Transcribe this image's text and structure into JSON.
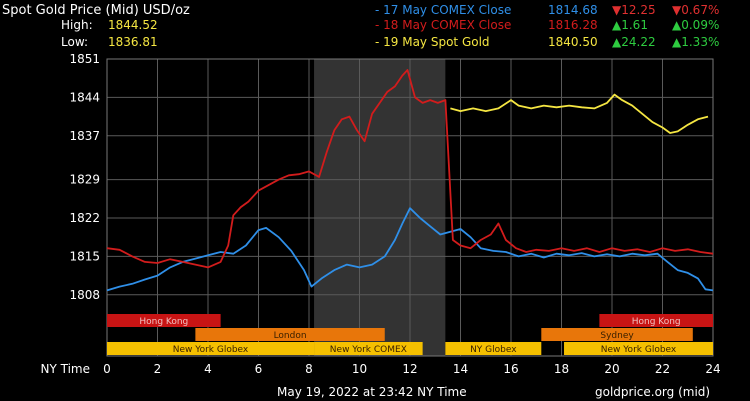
{
  "header": {
    "title": "Spot Gold Price (Mid) USD/oz",
    "high_label": "High:",
    "high_value": "1844.52",
    "low_label": "Low:",
    "low_value": "1836.81"
  },
  "legend": [
    {
      "dash": "-",
      "label": "17 May COMEX Close",
      "price": "1814.68",
      "change": "12.25",
      "change_pct": "0.67%",
      "direction": "down",
      "color": "#2f8fe8",
      "change_color": "#e03030"
    },
    {
      "dash": "-",
      "label": "18 May COMEX Close",
      "price": "1816.28",
      "change": "1.61",
      "change_pct": "0.09%",
      "direction": "up",
      "color": "#d21c1c",
      "change_color": "#2ecc40"
    },
    {
      "dash": "-",
      "label": "19 May Spot Gold",
      "price": "1840.50",
      "change": "24.22",
      "change_pct": "1.33%",
      "direction": "up",
      "color": "#f5e642",
      "change_color": "#2ecc40"
    }
  ],
  "footer": {
    "timestamp": "May 19, 2022 at 23:42 NY Time",
    "source": "goldprice.org (mid)",
    "x_axis_label": "NY Time"
  },
  "colors": {
    "background": "#000000",
    "grid": "#5a5a5a",
    "highlight": "#333333",
    "series_17": "#2f8fe8",
    "series_18": "#d21c1c",
    "series_19": "#f5e642",
    "hongkong": "#c81414",
    "london": "#e8760a",
    "sydney": "#e8760a",
    "newyork": "#f5c000"
  },
  "chart_data": {
    "type": "line",
    "x_ticks": [
      0,
      2,
      4,
      6,
      8,
      10,
      12,
      14,
      16,
      18,
      20,
      22,
      24
    ],
    "y_ticks": [
      1808,
      1815,
      1822,
      1829,
      1837,
      1844,
      1851
    ],
    "xlim": [
      0,
      24
    ],
    "ylim": [
      1803,
      1851
    ],
    "highlight_range": [
      8.2,
      13.4
    ],
    "grid": true,
    "series": [
      {
        "name": "17 May COMEX Close",
        "color": "#2f8fe8",
        "points": [
          [
            0,
            1808.8
          ],
          [
            0.5,
            1809.5
          ],
          [
            1,
            1810
          ],
          [
            1.5,
            1810.8
          ],
          [
            2,
            1811.5
          ],
          [
            2.5,
            1813
          ],
          [
            3,
            1814
          ],
          [
            3.5,
            1814.6
          ],
          [
            4,
            1815.2
          ],
          [
            4.5,
            1815.8
          ],
          [
            5,
            1815.5
          ],
          [
            5.5,
            1817
          ],
          [
            6,
            1819.8
          ],
          [
            6.3,
            1820.2
          ],
          [
            6.8,
            1818.5
          ],
          [
            7.3,
            1816
          ],
          [
            7.8,
            1812.5
          ],
          [
            8.1,
            1809.5
          ],
          [
            8.5,
            1811
          ],
          [
            9,
            1812.5
          ],
          [
            9.5,
            1813.5
          ],
          [
            10,
            1813
          ],
          [
            10.5,
            1813.5
          ],
          [
            11,
            1815
          ],
          [
            11.4,
            1818
          ],
          [
            11.7,
            1821
          ],
          [
            12,
            1823.8
          ],
          [
            12.4,
            1822
          ],
          [
            12.8,
            1820.5
          ],
          [
            13.2,
            1819
          ],
          [
            13.6,
            1819.5
          ],
          [
            14,
            1820
          ],
          [
            14.4,
            1818.5
          ],
          [
            14.8,
            1816.5
          ],
          [
            15.3,
            1816
          ],
          [
            15.8,
            1815.8
          ],
          [
            16.3,
            1815
          ],
          [
            16.8,
            1815.5
          ],
          [
            17.3,
            1814.8
          ],
          [
            17.8,
            1815.5
          ],
          [
            18.3,
            1815.2
          ],
          [
            18.8,
            1815.6
          ],
          [
            19.3,
            1815
          ],
          [
            19.8,
            1815.4
          ],
          [
            20.3,
            1815
          ],
          [
            20.8,
            1815.5
          ],
          [
            21.3,
            1815.2
          ],
          [
            21.8,
            1815.5
          ],
          [
            22.2,
            1814
          ],
          [
            22.6,
            1812.5
          ],
          [
            23,
            1812
          ],
          [
            23.4,
            1811
          ],
          [
            23.7,
            1809
          ],
          [
            24,
            1808.8
          ]
        ]
      },
      {
        "name": "18 May COMEX Close",
        "color": "#d21c1c",
        "points": [
          [
            0,
            1816.5
          ],
          [
            0.5,
            1816.2
          ],
          [
            1,
            1815
          ],
          [
            1.5,
            1814
          ],
          [
            2,
            1813.8
          ],
          [
            2.5,
            1814.5
          ],
          [
            3,
            1814
          ],
          [
            3.5,
            1813.5
          ],
          [
            4,
            1813
          ],
          [
            4.5,
            1814
          ],
          [
            4.8,
            1817
          ],
          [
            5,
            1822.5
          ],
          [
            5.3,
            1824
          ],
          [
            5.6,
            1825
          ],
          [
            6,
            1827
          ],
          [
            6.4,
            1828
          ],
          [
            6.8,
            1829
          ],
          [
            7.2,
            1829.8
          ],
          [
            7.6,
            1830
          ],
          [
            8,
            1830.5
          ],
          [
            8.4,
            1829.5
          ],
          [
            8.7,
            1834
          ],
          [
            9,
            1838
          ],
          [
            9.3,
            1840
          ],
          [
            9.6,
            1840.5
          ],
          [
            9.9,
            1838
          ],
          [
            10.2,
            1836
          ],
          [
            10.5,
            1841
          ],
          [
            10.8,
            1843
          ],
          [
            11.1,
            1845
          ],
          [
            11.4,
            1846
          ],
          [
            11.7,
            1848
          ],
          [
            11.9,
            1849
          ],
          [
            12.2,
            1844
          ],
          [
            12.5,
            1843
          ],
          [
            12.8,
            1843.5
          ],
          [
            13.1,
            1843
          ],
          [
            13.4,
            1843.5
          ],
          [
            13.7,
            1818
          ],
          [
            14,
            1817
          ],
          [
            14.4,
            1816.5
          ],
          [
            14.8,
            1818
          ],
          [
            15.2,
            1819
          ],
          [
            15.5,
            1821
          ],
          [
            15.8,
            1818
          ],
          [
            16.2,
            1816.5
          ],
          [
            16.6,
            1815.8
          ],
          [
            17,
            1816.2
          ],
          [
            17.5,
            1816
          ],
          [
            18,
            1816.5
          ],
          [
            18.5,
            1816
          ],
          [
            19,
            1816.5
          ],
          [
            19.5,
            1815.8
          ],
          [
            20,
            1816.5
          ],
          [
            20.5,
            1816
          ],
          [
            21,
            1816.3
          ],
          [
            21.5,
            1815.8
          ],
          [
            22,
            1816.5
          ],
          [
            22.5,
            1816
          ],
          [
            23,
            1816.3
          ],
          [
            23.5,
            1815.8
          ],
          [
            24,
            1815.5
          ]
        ]
      },
      {
        "name": "19 May Spot Gold",
        "color": "#f5e642",
        "points": [
          [
            13.6,
            1842
          ],
          [
            14,
            1841.5
          ],
          [
            14.5,
            1842
          ],
          [
            15,
            1841.5
          ],
          [
            15.5,
            1842
          ],
          [
            16,
            1843.5
          ],
          [
            16.3,
            1842.5
          ],
          [
            16.8,
            1842
          ],
          [
            17.3,
            1842.5
          ],
          [
            17.8,
            1842.2
          ],
          [
            18.3,
            1842.5
          ],
          [
            18.8,
            1842.2
          ],
          [
            19.3,
            1842
          ],
          [
            19.8,
            1843
          ],
          [
            20.1,
            1844.5
          ],
          [
            20.4,
            1843.5
          ],
          [
            20.8,
            1842.5
          ],
          [
            21.2,
            1841
          ],
          [
            21.6,
            1839.5
          ],
          [
            22,
            1838.5
          ],
          [
            22.3,
            1837.5
          ],
          [
            22.6,
            1837.8
          ],
          [
            23,
            1839
          ],
          [
            23.4,
            1840
          ],
          [
            23.8,
            1840.5
          ]
        ]
      }
    ],
    "sessions": [
      {
        "name": "Hong Kong",
        "color": "#c81414",
        "row": 0,
        "ranges": [
          [
            0,
            4.5
          ],
          [
            19.5,
            24
          ]
        ]
      },
      {
        "name": "London",
        "color": "#e8760a",
        "row": 1,
        "ranges": [
          [
            3.5,
            11
          ]
        ]
      },
      {
        "name": "Sydney",
        "color": "#e8760a",
        "row": 1,
        "ranges": [
          [
            17.2,
            23.2
          ]
        ]
      },
      {
        "name": "New York Globex",
        "color": "#f5c000",
        "row": 2,
        "ranges": [
          [
            0,
            8.2
          ]
        ]
      },
      {
        "name": "New York COMEX",
        "color": "#f5c000",
        "row": 2,
        "ranges": [
          [
            8.2,
            12.5
          ]
        ]
      },
      {
        "name": "NY Globex",
        "color": "#f5c000",
        "row": 2,
        "ranges": [
          [
            13.4,
            17.2
          ]
        ]
      },
      {
        "name": "New York Globex",
        "color": "#f5c000",
        "row": 2,
        "ranges": [
          [
            18.1,
            24
          ]
        ]
      }
    ]
  }
}
